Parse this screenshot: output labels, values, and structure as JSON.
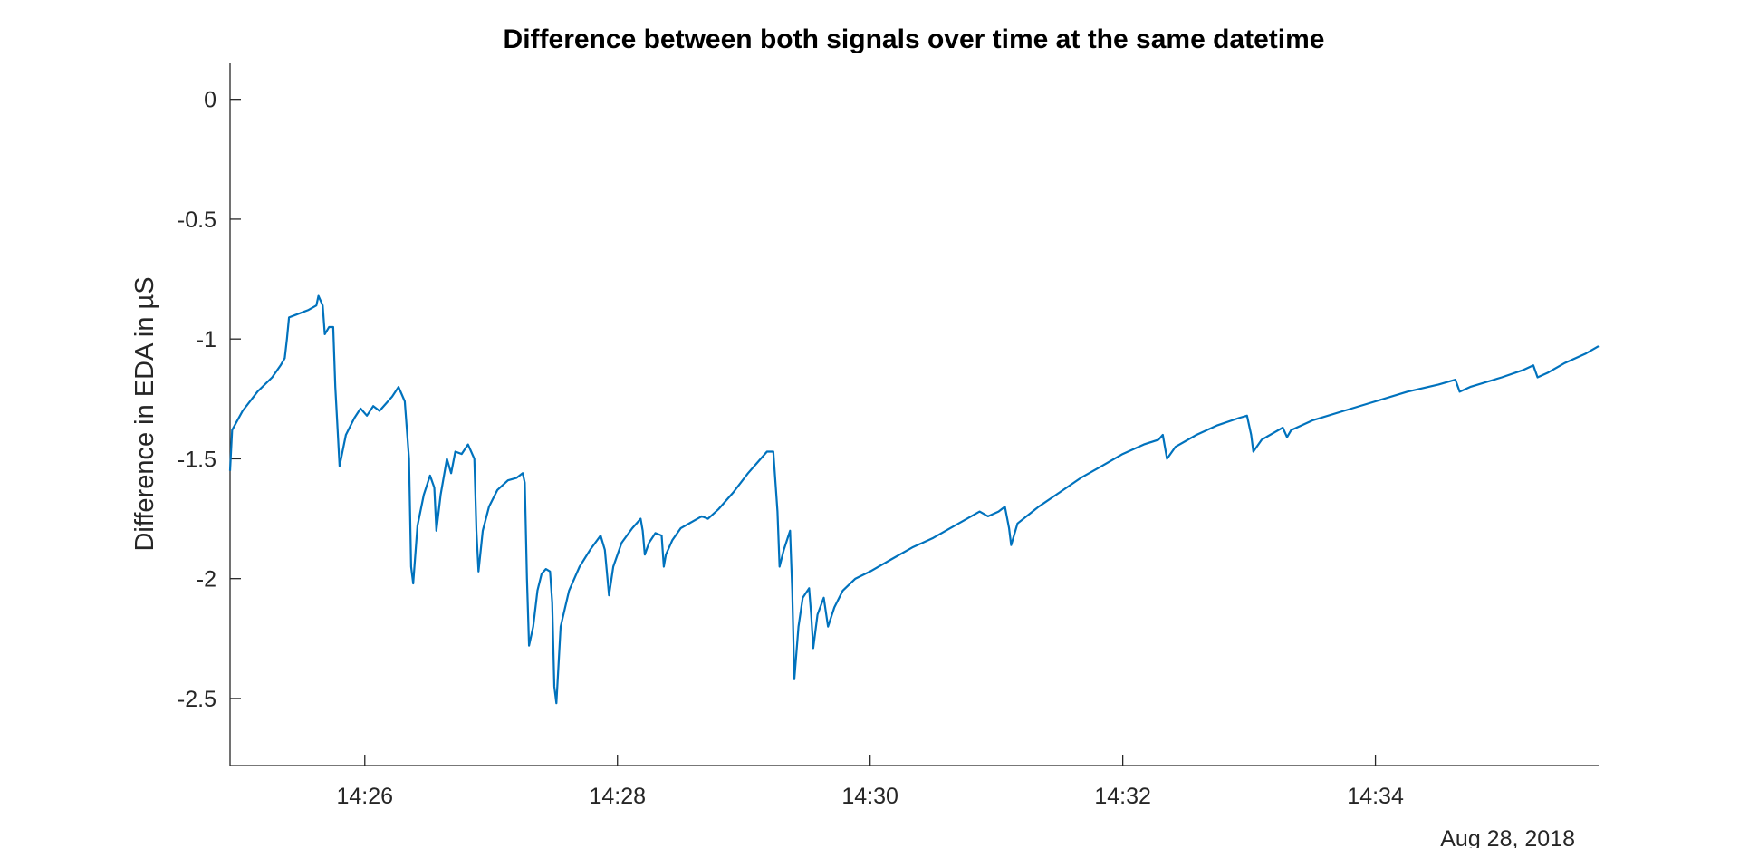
{
  "chart_data": {
    "type": "line",
    "title": "Difference between both signals over time at the same datetime",
    "xlabel": "",
    "ylabel": "Difference in EDA in µS",
    "date_label": "Aug 28, 2018",
    "x_ticks": [
      "14:26",
      "14:28",
      "14:30",
      "14:32",
      "14:34"
    ],
    "x_tick_values": [
      "14:26:00",
      "14:28:00",
      "14:30:00",
      "14:32:00",
      "14:34:00"
    ],
    "xlim": [
      "14:24:56",
      "14:35:46"
    ],
    "y_ticks": [
      0,
      -0.5,
      -1,
      -1.5,
      -2,
      -2.5
    ],
    "y_tick_labels": [
      "0",
      "-0.5",
      "-1",
      "-1.5",
      "-2",
      "-2.5"
    ],
    "ylim": [
      -2.78,
      0.15
    ],
    "grid": false,
    "line_color": "#0072BD",
    "series": [
      {
        "name": "",
        "points": [
          [
            "14:24:56",
            -1.55
          ],
          [
            "14:24:57",
            -1.38
          ],
          [
            "14:25:02",
            -1.3
          ],
          [
            "14:25:09",
            -1.22
          ],
          [
            "14:25:16",
            -1.16
          ],
          [
            "14:25:20",
            -1.11
          ],
          [
            "14:25:22",
            -1.08
          ],
          [
            "14:25:23",
            -1.0
          ],
          [
            "14:25:24",
            -0.91
          ],
          [
            "14:25:27",
            -0.9
          ],
          [
            "14:25:33",
            -0.88
          ],
          [
            "14:25:37",
            -0.86
          ],
          [
            "14:25:38",
            -0.82
          ],
          [
            "14:25:40",
            -0.86
          ],
          [
            "14:25:41",
            -0.98
          ],
          [
            "14:25:43",
            -0.95
          ],
          [
            "14:25:45",
            -0.95
          ],
          [
            "14:25:46",
            -1.2
          ],
          [
            "14:25:48",
            -1.53
          ],
          [
            "14:25:51",
            -1.4
          ],
          [
            "14:25:55",
            -1.33
          ],
          [
            "14:25:58",
            -1.29
          ],
          [
            "14:26:01",
            -1.32
          ],
          [
            "14:26:04",
            -1.28
          ],
          [
            "14:26:07",
            -1.3
          ],
          [
            "14:26:10",
            -1.27
          ],
          [
            "14:26:13",
            -1.24
          ],
          [
            "14:26:16",
            -1.2
          ],
          [
            "14:26:19",
            -1.26
          ],
          [
            "14:26:21",
            -1.5
          ],
          [
            "14:26:22",
            -1.95
          ],
          [
            "14:26:23",
            -2.02
          ],
          [
            "14:26:25",
            -1.78
          ],
          [
            "14:26:28",
            -1.65
          ],
          [
            "14:26:31",
            -1.57
          ],
          [
            "14:26:33",
            -1.62
          ],
          [
            "14:26:34",
            -1.8
          ],
          [
            "14:26:36",
            -1.65
          ],
          [
            "14:26:38",
            -1.55
          ],
          [
            "14:26:39",
            -1.5
          ],
          [
            "14:26:41",
            -1.56
          ],
          [
            "14:26:43",
            -1.47
          ],
          [
            "14:26:46",
            -1.48
          ],
          [
            "14:26:49",
            -1.44
          ],
          [
            "14:26:52",
            -1.5
          ],
          [
            "14:26:53",
            -1.8
          ],
          [
            "14:26:54",
            -1.97
          ],
          [
            "14:26:56",
            -1.8
          ],
          [
            "14:26:59",
            -1.7
          ],
          [
            "14:27:03",
            -1.63
          ],
          [
            "14:27:08",
            -1.59
          ],
          [
            "14:27:12",
            -1.58
          ],
          [
            "14:27:15",
            -1.56
          ],
          [
            "14:27:16",
            -1.6
          ],
          [
            "14:27:17",
            -2.0
          ],
          [
            "14:27:18",
            -2.28
          ],
          [
            "14:27:20",
            -2.2
          ],
          [
            "14:27:22",
            -2.05
          ],
          [
            "14:27:24",
            -1.98
          ],
          [
            "14:27:26",
            -1.96
          ],
          [
            "14:27:28",
            -1.97
          ],
          [
            "14:27:29",
            -2.1
          ],
          [
            "14:27:30",
            -2.45
          ],
          [
            "14:27:31",
            -2.52
          ],
          [
            "14:27:33",
            -2.2
          ],
          [
            "14:27:37",
            -2.05
          ],
          [
            "14:27:42",
            -1.95
          ],
          [
            "14:27:47",
            -1.88
          ],
          [
            "14:27:52",
            -1.82
          ],
          [
            "14:27:54",
            -1.88
          ],
          [
            "14:27:56",
            -2.07
          ],
          [
            "14:27:58",
            -1.95
          ],
          [
            "14:28:02",
            -1.85
          ],
          [
            "14:28:07",
            -1.79
          ],
          [
            "14:28:11",
            -1.75
          ],
          [
            "14:28:12",
            -1.8
          ],
          [
            "14:28:13",
            -1.9
          ],
          [
            "14:28:15",
            -1.85
          ],
          [
            "14:28:18",
            -1.81
          ],
          [
            "14:28:21",
            -1.82
          ],
          [
            "14:28:22",
            -1.95
          ],
          [
            "14:28:23",
            -1.9
          ],
          [
            "14:28:26",
            -1.84
          ],
          [
            "14:28:30",
            -1.79
          ],
          [
            "14:28:36",
            -1.76
          ],
          [
            "14:28:40",
            -1.74
          ],
          [
            "14:28:43",
            -1.75
          ],
          [
            "14:28:48",
            -1.71
          ],
          [
            "14:28:55",
            -1.64
          ],
          [
            "14:29:02",
            -1.56
          ],
          [
            "14:29:07",
            -1.51
          ],
          [
            "14:29:11",
            -1.47
          ],
          [
            "14:29:14",
            -1.47
          ],
          [
            "14:29:16",
            -1.72
          ],
          [
            "14:29:17",
            -1.95
          ],
          [
            "14:29:19",
            -1.88
          ],
          [
            "14:29:22",
            -1.8
          ],
          [
            "14:29:23",
            -2.05
          ],
          [
            "14:29:24",
            -2.42
          ],
          [
            "14:29:26",
            -2.2
          ],
          [
            "14:29:28",
            -2.08
          ],
          [
            "14:29:31",
            -2.04
          ],
          [
            "14:29:32",
            -2.15
          ],
          [
            "14:29:33",
            -2.29
          ],
          [
            "14:29:35",
            -2.15
          ],
          [
            "14:29:38",
            -2.08
          ],
          [
            "14:29:40",
            -2.2
          ],
          [
            "14:29:43",
            -2.12
          ],
          [
            "14:29:47",
            -2.05
          ],
          [
            "14:29:53",
            -2.0
          ],
          [
            "14:30:00",
            -1.97
          ],
          [
            "14:30:10",
            -1.92
          ],
          [
            "14:30:20",
            -1.87
          ],
          [
            "14:30:30",
            -1.83
          ],
          [
            "14:30:38",
            -1.79
          ],
          [
            "14:30:46",
            -1.75
          ],
          [
            "14:30:52",
            -1.72
          ],
          [
            "14:30:56",
            -1.74
          ],
          [
            "14:31:01",
            -1.72
          ],
          [
            "14:31:04",
            -1.7
          ],
          [
            "14:31:06",
            -1.79
          ],
          [
            "14:31:07",
            -1.86
          ],
          [
            "14:31:10",
            -1.77
          ],
          [
            "14:31:20",
            -1.7
          ],
          [
            "14:31:30",
            -1.64
          ],
          [
            "14:31:40",
            -1.58
          ],
          [
            "14:31:50",
            -1.53
          ],
          [
            "14:32:00",
            -1.48
          ],
          [
            "14:32:10",
            -1.44
          ],
          [
            "14:32:17",
            -1.42
          ],
          [
            "14:32:19",
            -1.4
          ],
          [
            "14:32:21",
            -1.5
          ],
          [
            "14:32:25",
            -1.45
          ],
          [
            "14:32:35",
            -1.4
          ],
          [
            "14:32:45",
            -1.36
          ],
          [
            "14:32:55",
            -1.33
          ],
          [
            "14:32:59",
            -1.32
          ],
          [
            "14:33:01",
            -1.4
          ],
          [
            "14:33:02",
            -1.47
          ],
          [
            "14:33:06",
            -1.42
          ],
          [
            "14:33:12",
            -1.39
          ],
          [
            "14:33:16",
            -1.37
          ],
          [
            "14:33:18",
            -1.41
          ],
          [
            "14:33:20",
            -1.38
          ],
          [
            "14:33:30",
            -1.34
          ],
          [
            "14:33:45",
            -1.3
          ],
          [
            "14:34:00",
            -1.26
          ],
          [
            "14:34:15",
            -1.22
          ],
          [
            "14:34:30",
            -1.19
          ],
          [
            "14:34:38",
            -1.17
          ],
          [
            "14:34:40",
            -1.22
          ],
          [
            "14:34:45",
            -1.2
          ],
          [
            "14:35:00",
            -1.16
          ],
          [
            "14:35:10",
            -1.13
          ],
          [
            "14:35:15",
            -1.11
          ],
          [
            "14:35:17",
            -1.16
          ],
          [
            "14:35:22",
            -1.14
          ],
          [
            "14:35:30",
            -1.1
          ],
          [
            "14:35:40",
            -1.06
          ],
          [
            "14:35:46",
            -1.03
          ]
        ]
      }
    ]
  }
}
